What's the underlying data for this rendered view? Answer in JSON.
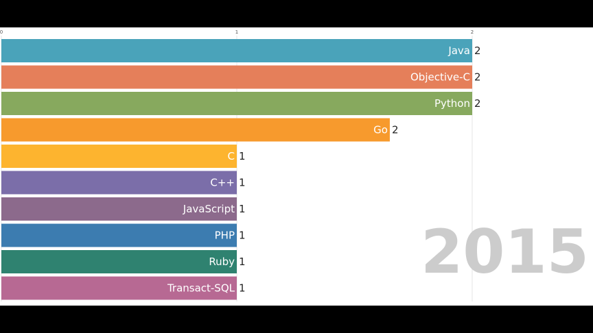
{
  "chart_data": {
    "type": "bar",
    "orientation": "horizontal",
    "title": "",
    "xlabel": "",
    "ylabel": "",
    "xlim": [
      0,
      2
    ],
    "x_ticks": [
      "0",
      "1",
      "2"
    ],
    "grid": true,
    "categories": [
      "Java",
      "Objective-C",
      "Python",
      "Go",
      "C",
      "C++",
      "JavaScript",
      "PHP",
      "Ruby",
      "Transact-SQL"
    ],
    "values": [
      2,
      2,
      2,
      1.65,
      1,
      1,
      1,
      1,
      1,
      1
    ],
    "value_labels": [
      "2",
      "2",
      "2",
      "2",
      "1",
      "1",
      "1",
      "1",
      "1",
      "1"
    ],
    "colors": [
      "#4aa3ba",
      "#e57f5a",
      "#87a95e",
      "#f79a2d",
      "#fdb42f",
      "#7b6ea9",
      "#8c6a8c",
      "#3c7cb0",
      "#2f8270",
      "#b76993"
    ],
    "year": "2015"
  }
}
